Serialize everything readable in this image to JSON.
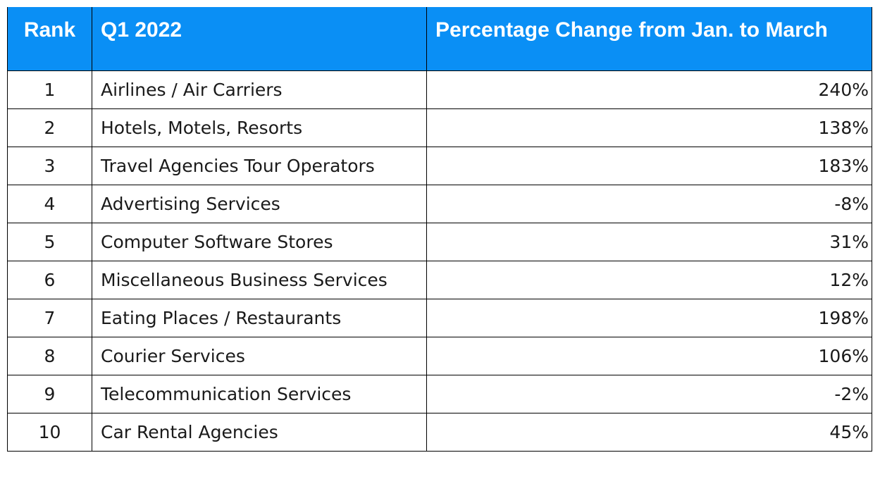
{
  "chart_data": {
    "type": "table",
    "columns": [
      "Rank",
      "Q1 2022",
      "Percentage Change from Jan. to March"
    ],
    "rows": [
      {
        "rank": "1",
        "category": "Airlines / Air Carriers",
        "change": "240%"
      },
      {
        "rank": "2",
        "category": "Hotels, Motels, Resorts",
        "change": "138%"
      },
      {
        "rank": "3",
        "category": "Travel Agencies Tour Operators",
        "change": "183%"
      },
      {
        "rank": "4",
        "category": "Advertising Services",
        "change": "-8%"
      },
      {
        "rank": "5",
        "category": "Computer Software Stores",
        "change": "31%"
      },
      {
        "rank": "6",
        "category": "Miscellaneous Business Services",
        "change": "12%"
      },
      {
        "rank": "7",
        "category": "Eating Places / Restaurants",
        "change": "198%"
      },
      {
        "rank": "8",
        "category": "Courier Services",
        "change": "106%"
      },
      {
        "rank": "9",
        "category": "Telecommunication Services",
        "change": "-2%"
      },
      {
        "rank": "10",
        "category": "Car Rental Agencies",
        "change": "45%"
      }
    ]
  },
  "colors": {
    "header_background": "#0a8ff5",
    "header_text": "#ffffff",
    "body_text": "#1a1a1a",
    "border": "#000000"
  }
}
